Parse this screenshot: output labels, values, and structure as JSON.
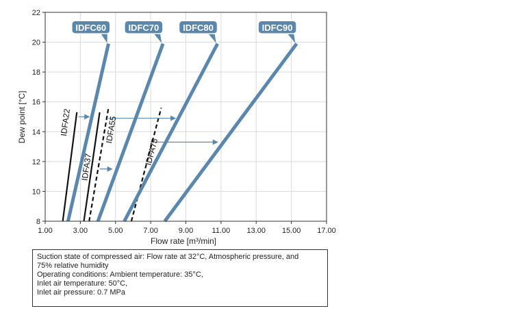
{
  "chart_data": {
    "type": "line",
    "xlabel": "Flow rate [m³/min]",
    "ylabel": "Dew point [°C]",
    "xlim": [
      1,
      17
    ],
    "ylim": [
      8,
      22
    ],
    "x_ticks": [
      1,
      3,
      5,
      7,
      9,
      11,
      13,
      15,
      17
    ],
    "x_tick_labels": [
      "1.00",
      "3.00",
      "5.00",
      "7.00",
      "9.00",
      "11.00",
      "13.00",
      "15.00",
      "17.00"
    ],
    "y_ticks": [
      8,
      10,
      12,
      14,
      16,
      18,
      20,
      22
    ],
    "y_tick_labels": [
      "8",
      "10",
      "12",
      "14",
      "16",
      "18",
      "20",
      "22"
    ],
    "grid": true,
    "thick_series": [
      {
        "name": "IDFC60",
        "points": [
          [
            2.3,
            8
          ],
          [
            4.6,
            19.9
          ]
        ],
        "color": "#5a87ad",
        "label_at": [
          3.6,
          21.0
        ]
      },
      {
        "name": "IDFC70",
        "points": [
          [
            4.0,
            8
          ],
          [
            7.7,
            19.9
          ]
        ],
        "color": "#5a87ad",
        "label_at": [
          6.6,
          21.0
        ]
      },
      {
        "name": "IDFC80",
        "points": [
          [
            5.5,
            8
          ],
          [
            10.8,
            19.9
          ]
        ],
        "color": "#5a87ad",
        "label_at": [
          9.7,
          21.0
        ]
      },
      {
        "name": "IDFC90",
        "points": [
          [
            7.8,
            8
          ],
          [
            15.3,
            19.9
          ]
        ],
        "color": "#5a87ad",
        "label_at": [
          14.2,
          21.0
        ]
      }
    ],
    "thin_series": [
      {
        "name": "IDFA22",
        "points": [
          [
            2.0,
            8
          ],
          [
            2.8,
            15.3
          ]
        ],
        "dashed": false,
        "label_at": [
          2.3,
          14.6
        ]
      },
      {
        "name": "IDFA37",
        "points": [
          [
            3.2,
            8
          ],
          [
            4.1,
            15.3
          ]
        ],
        "dashed": false,
        "label_at": [
          3.5,
          11.6
        ]
      },
      {
        "name": "IDFA55",
        "points": [
          [
            3.5,
            8
          ],
          [
            4.6,
            15.6
          ]
        ],
        "dashed": true,
        "label_at": [
          4.9,
          14.1
        ]
      },
      {
        "name": "IDFA75",
        "points": [
          [
            5.9,
            8
          ],
          [
            7.6,
            15.6
          ]
        ],
        "dashed": true,
        "label_at": [
          7.2,
          12.6
        ]
      }
    ],
    "arrows": [
      {
        "from": [
          2.9,
          15.0
        ],
        "to": [
          3.5,
          15.0
        ]
      },
      {
        "from": [
          4.6,
          14.9
        ],
        "to": [
          8.4,
          14.9
        ]
      },
      {
        "from": [
          4.1,
          11.5
        ],
        "to": [
          4.8,
          11.5
        ]
      },
      {
        "from": [
          7.0,
          13.3
        ],
        "to": [
          10.8,
          13.3
        ]
      }
    ],
    "note_lines": [
      "Suction state of compressed air: Flow rate at 32°C, Atmospheric pressure, and",
      "75% relative humidity",
      "Operating conditions: Ambient temperature: 35°C,",
      "Inlet air temperature: 50°C,",
      "Inlet air pressure: 0.7 MPa"
    ],
    "colors": {
      "thick": "#5a87ad",
      "tag": "#5a87ad",
      "thin": "#111111",
      "arrow": "#5a87ad",
      "grid": "#d9d9d9",
      "plot_bg": "#ffffff"
    }
  }
}
